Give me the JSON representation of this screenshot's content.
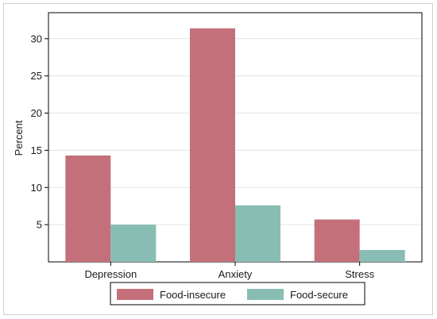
{
  "chart_data": {
    "type": "bar",
    "ylabel": "Percent",
    "categories": [
      "Depression",
      "Anxiety",
      "Stress"
    ],
    "series": [
      {
        "name": "Food-insecure",
        "color": "#c4707a",
        "values": [
          14.3,
          31.4,
          5.7
        ]
      },
      {
        "name": "Food-secure",
        "color": "#88bdb4",
        "values": [
          5.0,
          7.6,
          1.6
        ]
      }
    ],
    "ylim": [
      0,
      33.5
    ],
    "yticks": [
      5,
      10,
      15,
      20,
      25,
      30
    ],
    "grid": true,
    "legend": "bottom"
  }
}
